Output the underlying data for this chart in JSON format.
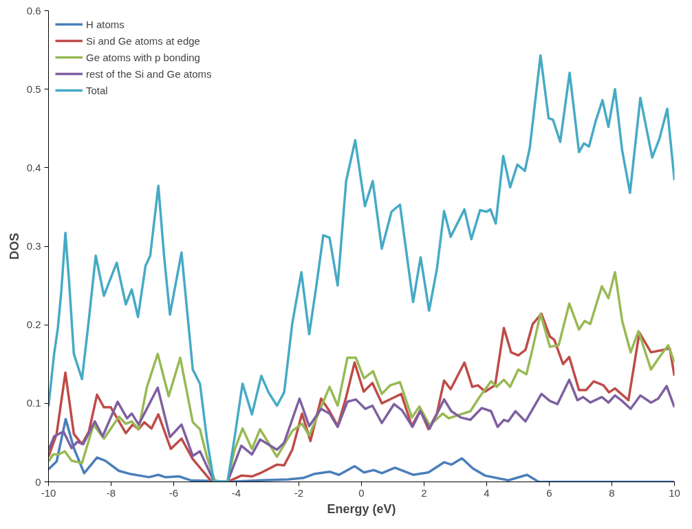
{
  "chart_data": {
    "type": "line",
    "xlabel": "Energy (eV)",
    "ylabel": "DOS",
    "xlim": [
      -10,
      10
    ],
    "xticks": [
      -10,
      -8,
      -6,
      -4,
      -2,
      0,
      2,
      4,
      6,
      8,
      10
    ],
    "ylim": [
      0,
      0.6
    ],
    "yticks": [
      0,
      0.1,
      0.2,
      0.3,
      0.4,
      0.5,
      0.6
    ],
    "grid": false,
    "legend": "top left",
    "marker": "none",
    "line_style": "solid",
    "series": [
      {
        "name": "H atoms",
        "color": "#4a7ebb",
        "x": [
          -10,
          -9.74,
          -9.45,
          -9.19,
          -8.86,
          -8.45,
          -8.19,
          -7.75,
          -7.38,
          -7.08,
          -6.79,
          -6.49,
          -6.27,
          -5.83,
          -5.46,
          -4.72,
          -4.28,
          -3.24,
          -2.36,
          -1.86,
          -1.52,
          -1.02,
          -0.72,
          -0.22,
          0.08,
          0.39,
          0.65,
          1.07,
          1.65,
          2.14,
          2.64,
          2.87,
          3.21,
          3.56,
          3.95,
          4.69,
          5.29,
          5.66,
          10
        ],
        "values": [
          0.016,
          0.026,
          0.08,
          0.043,
          0.011,
          0.031,
          0.027,
          0.014,
          0.01,
          0.008,
          0.006,
          0.009,
          0.006,
          0.007,
          0.002,
          0.001,
          0,
          0.002,
          0.003,
          0.005,
          0.01,
          0.013,
          0.009,
          0.02,
          0.012,
          0.015,
          0.011,
          0.018,
          0.009,
          0.012,
          0.025,
          0.022,
          0.03,
          0.017,
          0.008,
          0.002,
          0.009,
          0,
          0
        ]
      },
      {
        "name": "Si and Ge atoms at edge",
        "color": "#be4b48",
        "x": [
          -10,
          -9.74,
          -9.46,
          -9.19,
          -8.93,
          -8.71,
          -8.45,
          -8.23,
          -8.01,
          -7.53,
          -7.31,
          -7.12,
          -6.94,
          -6.71,
          -6.49,
          -6.09,
          -5.75,
          -5.39,
          -4.8,
          -4.28,
          -3.84,
          -3.5,
          -3.24,
          -2.7,
          -2.47,
          -2.21,
          -1.9,
          -1.63,
          -1.29,
          -1.02,
          -0.76,
          -0.49,
          -0.22,
          0.07,
          0.35,
          0.65,
          0.96,
          1.27,
          1.61,
          1.88,
          2.14,
          2.41,
          2.64,
          2.85,
          3.29,
          3.54,
          3.72,
          3.95,
          4.27,
          4.55,
          4.78,
          5.01,
          5.24,
          5.47,
          5.75,
          6.02,
          6.16,
          6.44,
          6.64,
          6.95,
          7.18,
          7.42,
          7.73,
          7.91,
          8.1,
          8.53,
          8.88,
          9.25,
          9.52,
          9.85,
          10
        ],
        "values": [
          0.032,
          0.061,
          0.139,
          0.061,
          0.048,
          0.064,
          0.111,
          0.095,
          0.095,
          0.062,
          0.073,
          0.067,
          0.076,
          0.068,
          0.086,
          0.042,
          0.055,
          0.029,
          0.001,
          0,
          0.008,
          0.007,
          0.011,
          0.022,
          0.021,
          0.041,
          0.087,
          0.052,
          0.106,
          0.09,
          0.071,
          0.108,
          0.152,
          0.115,
          0.126,
          0.1,
          0.106,
          0.112,
          0.071,
          0.091,
          0.067,
          0.087,
          0.129,
          0.118,
          0.152,
          0.121,
          0.123,
          0.115,
          0.123,
          0.196,
          0.165,
          0.161,
          0.168,
          0.201,
          0.214,
          0.185,
          0.181,
          0.15,
          0.159,
          0.117,
          0.117,
          0.128,
          0.123,
          0.114,
          0.119,
          0.104,
          0.19,
          0.165,
          0.167,
          0.17,
          0.135
        ]
      },
      {
        "name": "Ge atoms with p bonding",
        "color": "#98b954",
        "x": [
          -10,
          -9.85,
          -9.67,
          -9.48,
          -9.26,
          -8.93,
          -8.56,
          -8.23,
          -7.75,
          -7.53,
          -7.34,
          -7.12,
          -6.86,
          -6.51,
          -6.16,
          -5.79,
          -5.39,
          -5.16,
          -4.94,
          -4.68,
          -4.28,
          -4.06,
          -3.8,
          -3.5,
          -3.24,
          -2.7,
          -2.21,
          -1.9,
          -1.67,
          -1.02,
          -0.76,
          -0.45,
          -0.18,
          0.08,
          0.37,
          0.65,
          0.92,
          1.23,
          1.61,
          1.85,
          2.18,
          2.6,
          2.79,
          3.1,
          3.48,
          3.77,
          4.14,
          4.32,
          4.55,
          4.75,
          5.01,
          5.27,
          5.47,
          5.72,
          6.02,
          6.3,
          6.64,
          6.95,
          7.13,
          7.31,
          7.68,
          7.89,
          8.1,
          8.33,
          8.6,
          8.85,
          9.25,
          9.52,
          9.8,
          10
        ],
        "values": [
          0.026,
          0.035,
          0.035,
          0.039,
          0.027,
          0.024,
          0.073,
          0.055,
          0.083,
          0.074,
          0.077,
          0.067,
          0.12,
          0.163,
          0.109,
          0.158,
          0.076,
          0.067,
          0.032,
          0.001,
          0,
          0.04,
          0.068,
          0.042,
          0.067,
          0.032,
          0.065,
          0.074,
          0.059,
          0.121,
          0.097,
          0.158,
          0.158,
          0.132,
          0.141,
          0.112,
          0.123,
          0.127,
          0.082,
          0.096,
          0.072,
          0.087,
          0.081,
          0.085,
          0.09,
          0.108,
          0.128,
          0.121,
          0.13,
          0.121,
          0.143,
          0.137,
          0.17,
          0.214,
          0.172,
          0.174,
          0.227,
          0.194,
          0.205,
          0.201,
          0.249,
          0.234,
          0.267,
          0.205,
          0.165,
          0.192,
          0.143,
          0.159,
          0.174,
          0.152
        ]
      },
      {
        "name": "rest of the Si and Ge atoms",
        "color": "#7d60a0",
        "x": [
          -10,
          -9.82,
          -9.52,
          -9.26,
          -9.08,
          -8.89,
          -8.52,
          -8.27,
          -7.79,
          -7.49,
          -7.34,
          -7.12,
          -6.86,
          -6.51,
          -6.12,
          -5.75,
          -5.39,
          -5.16,
          -4.72,
          -4.28,
          -3.84,
          -3.5,
          -3.24,
          -2.7,
          -2.47,
          -1.98,
          -1.67,
          -1.29,
          -1.02,
          -0.76,
          -0.45,
          -0.18,
          0.12,
          0.35,
          0.65,
          1.04,
          1.3,
          1.63,
          1.88,
          2.18,
          2.64,
          2.87,
          3.17,
          3.48,
          3.84,
          4.14,
          4.35,
          4.55,
          4.69,
          4.92,
          5.24,
          5.75,
          6.02,
          6.26,
          6.64,
          6.9,
          7.08,
          7.31,
          7.68,
          7.89,
          8.1,
          8.33,
          8.6,
          8.91,
          9.25,
          9.48,
          9.75,
          10
        ],
        "values": [
          0.04,
          0.058,
          0.064,
          0.043,
          0.051,
          0.048,
          0.077,
          0.058,
          0.102,
          0.081,
          0.087,
          0.073,
          0.093,
          0.12,
          0.057,
          0.073,
          0.033,
          0.039,
          0.001,
          0,
          0.046,
          0.035,
          0.054,
          0.041,
          0.05,
          0.106,
          0.071,
          0.093,
          0.087,
          0.07,
          0.102,
          0.105,
          0.093,
          0.097,
          0.075,
          0.099,
          0.091,
          0.07,
          0.09,
          0.068,
          0.105,
          0.09,
          0.082,
          0.079,
          0.094,
          0.09,
          0.07,
          0.079,
          0.077,
          0.09,
          0.077,
          0.112,
          0.103,
          0.099,
          0.13,
          0.104,
          0.108,
          0.101,
          0.108,
          0.101,
          0.11,
          0.103,
          0.093,
          0.11,
          0.101,
          0.106,
          0.122,
          0.095
        ]
      },
      {
        "name": "Total",
        "color": "#46aac5",
        "x": [
          -10,
          -9.82,
          -9.7,
          -9.59,
          -9.46,
          -9.34,
          -9.19,
          -8.93,
          -8.74,
          -8.49,
          -8.23,
          -7.82,
          -7.53,
          -7.34,
          -7.14,
          -6.9,
          -6.75,
          -6.49,
          -6.31,
          -6.12,
          -5.75,
          -5.39,
          -5.16,
          -4.94,
          -4.72,
          -4.28,
          -4.06,
          -3.8,
          -3.5,
          -3.2,
          -2.97,
          -2.7,
          -2.47,
          -2.21,
          -1.92,
          -1.67,
          -1.44,
          -1.22,
          -1.02,
          -0.76,
          -0.49,
          -0.2,
          0.11,
          0.36,
          0.65,
          0.96,
          1.23,
          1.65,
          1.89,
          2.16,
          2.41,
          2.64,
          2.85,
          3.29,
          3.51,
          3.79,
          4.0,
          4.12,
          4.29,
          4.53,
          4.75,
          4.98,
          5.22,
          5.38,
          5.72,
          5.98,
          6.12,
          6.35,
          6.65,
          6.95,
          7.11,
          7.27,
          7.48,
          7.7,
          7.89,
          8.1,
          8.33,
          8.58,
          8.91,
          9.29,
          9.52,
          9.77,
          10
        ],
        "values": [
          0.096,
          0.163,
          0.196,
          0.243,
          0.317,
          0.254,
          0.163,
          0.131,
          0.196,
          0.288,
          0.237,
          0.279,
          0.226,
          0.245,
          0.21,
          0.275,
          0.288,
          0.377,
          0.289,
          0.213,
          0.292,
          0.143,
          0.125,
          0.055,
          0.001,
          0,
          0.055,
          0.125,
          0.086,
          0.135,
          0.114,
          0.097,
          0.114,
          0.202,
          0.267,
          0.188,
          0.25,
          0.314,
          0.311,
          0.25,
          0.383,
          0.435,
          0.351,
          0.383,
          0.297,
          0.344,
          0.353,
          0.229,
          0.286,
          0.218,
          0.271,
          0.345,
          0.312,
          0.347,
          0.309,
          0.346,
          0.344,
          0.347,
          0.329,
          0.415,
          0.375,
          0.404,
          0.396,
          0.426,
          0.543,
          0.463,
          0.461,
          0.433,
          0.521,
          0.42,
          0.431,
          0.427,
          0.459,
          0.486,
          0.452,
          0.5,
          0.422,
          0.368,
          0.489,
          0.413,
          0.437,
          0.475,
          0.384
        ]
      }
    ]
  }
}
